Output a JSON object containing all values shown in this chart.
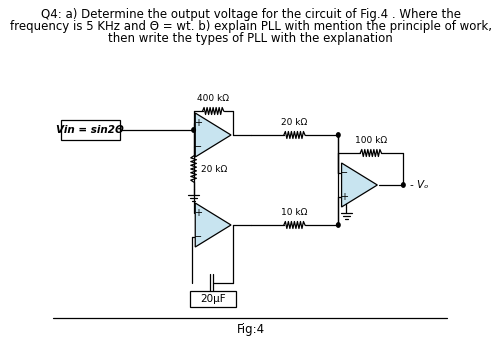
{
  "title_line1": "Q4: a) Determine the output voltage for the circuit of Fig.4 . Where the",
  "title_line2": "frequency is 5 KHz and Θ = wt. b) explain PLL with mention the principle of work,",
  "title_line3": "then write the types of PLL with the explanation",
  "fig_label": "Fig:4",
  "vin_label": "Vin = sin2Θ",
  "cap_label": "20μF",
  "vout_label": "Vₒ",
  "r1_label": "400 kΩ",
  "r2_label": "20 kΩ",
  "r3_label": "20 kΩ",
  "r4_label": "10 kΩ",
  "r5_label": "100 kΩ",
  "bg_color": "#ffffff",
  "line_color": "#000000",
  "op_amp_color": "#c8e4f0",
  "title_fontsize": 8.5,
  "label_fontsize": 6.5,
  "fig_fontsize": 8.5
}
